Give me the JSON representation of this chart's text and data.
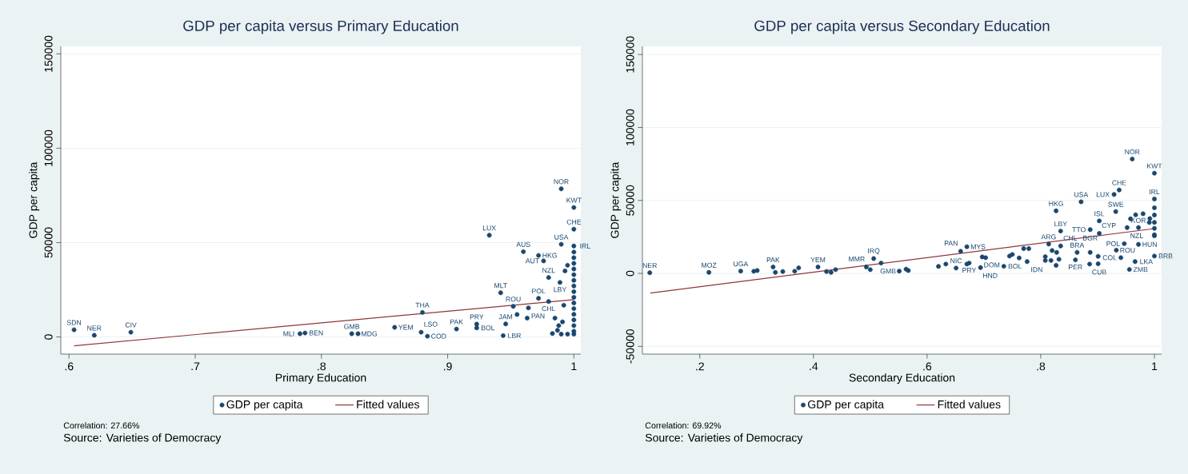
{
  "chart_data": [
    {
      "type": "scatter",
      "title": "GDP per capita versus Primary Education",
      "xlabel": "Primary Education",
      "ylabel": "GDP per capita",
      "xlim": [
        0.5935,
        1.0055
      ],
      "ylim": [
        -9100,
        154000
      ],
      "xticks": [
        {
          "value": 0.6,
          "label": ".6"
        },
        {
          "value": 0.7,
          "label": ".7"
        },
        {
          "value": 0.8,
          "label": ".8"
        },
        {
          "value": 0.9,
          "label": ".9"
        },
        {
          "value": 1,
          "label": "1"
        }
      ],
      "yticks": [
        0,
        50000,
        100000,
        150000
      ],
      "grid": "y",
      "legend": "bottom",
      "series": [
        {
          "name": "GDP per capita",
          "color": "#1a476f",
          "x": [
            0.604,
            0.62,
            0.649,
            0.783,
            0.787,
            0.824,
            0.829,
            0.858,
            0.88,
            0.879,
            0.884,
            0.907,
            0.923,
            0.923,
            0.99,
            1.0,
            1.0,
            0.933,
            0.99,
            1.0,
            0.96,
            0.972,
            0.976,
            0.98,
            0.989,
            0.942,
            0.972,
            0.98,
            0.952,
            0.964,
            0.955,
            0.963,
            0.946,
            0.944,
            0.992,
            1.0,
            1.0,
            1.0,
            1.0,
            1.0,
            1.0,
            1.0,
            1.0,
            1.0,
            1.0,
            1.0,
            1.0,
            1.0,
            1.0,
            1.0,
            1.0,
            0.985,
            0.988,
            0.99,
            0.995,
            0.983,
            0.987,
            0.995,
            0.993,
            0.991
          ],
          "values": [
            3800,
            900,
            2500,
            1700,
            2100,
            1700,
            1700,
            5100,
            13000,
            2500,
            400,
            4200,
            6800,
            4800,
            78500,
            68600,
            57100,
            53900,
            49100,
            48200,
            45200,
            43200,
            40300,
            31500,
            28900,
            23400,
            20500,
            18800,
            16200,
            15400,
            11900,
            10000,
            6900,
            700,
            16800,
            45000,
            42000,
            39000,
            36000,
            33000,
            30000,
            27000,
            24000,
            21000,
            18000,
            15000,
            12000,
            9000,
            6000,
            3000,
            1500,
            10000,
            6000,
            1500,
            1500,
            1800,
            3500,
            38000,
            35000,
            8000
          ]
        },
        {
          "name": "Fitted values",
          "color": "#90353b",
          "type": "line",
          "x": [
            0.604,
            1.0
          ],
          "values": [
            -4700,
            19800
          ]
        }
      ],
      "annotations": [
        {
          "text": "SDN",
          "x": 0.604,
          "y": 3800
        },
        {
          "text": "NER",
          "x": 0.62,
          "y": 900
        },
        {
          "text": "CIV",
          "x": 0.649,
          "y": 2500
        },
        {
          "text": "MLI",
          "x": 0.783,
          "y": 1700
        },
        {
          "text": "BEN",
          "x": 0.787,
          "y": 2100
        },
        {
          "text": "GMB",
          "x": 0.824,
          "y": 1700
        },
        {
          "text": "MDG",
          "x": 0.829,
          "y": 1700
        },
        {
          "text": "YEM",
          "x": 0.858,
          "y": 5100
        },
        {
          "text": "THA",
          "x": 0.88,
          "y": 13000
        },
        {
          "text": "LSO",
          "x": 0.879,
          "y": 2500
        },
        {
          "text": "COD",
          "x": 0.884,
          "y": 400
        },
        {
          "text": "PAK",
          "x": 0.907,
          "y": 4200
        },
        {
          "text": "PRY",
          "x": 0.923,
          "y": 6800
        },
        {
          "text": "BOL",
          "x": 0.923,
          "y": 4800
        },
        {
          "text": "NOR",
          "x": 0.99,
          "y": 78500
        },
        {
          "text": "KWT",
          "x": 1.0,
          "y": 68600
        },
        {
          "text": "CHE",
          "x": 1.0,
          "y": 57100
        },
        {
          "text": "LUX",
          "x": 0.933,
          "y": 53900
        },
        {
          "text": "USA",
          "x": 0.99,
          "y": 49100
        },
        {
          "text": "IRL",
          "x": 1.0,
          "y": 48200
        },
        {
          "text": "AUS",
          "x": 0.96,
          "y": 45200
        },
        {
          "text": "HKG",
          "x": 0.972,
          "y": 43200
        },
        {
          "text": "AUT",
          "x": 0.976,
          "y": 40300
        },
        {
          "text": "NZL",
          "x": 0.98,
          "y": 31500
        },
        {
          "text": "LBY",
          "x": 0.989,
          "y": 28900
        },
        {
          "text": "MLT",
          "x": 0.942,
          "y": 23400
        },
        {
          "text": "POL",
          "x": 0.972,
          "y": 20500
        },
        {
          "text": "CHL",
          "x": 0.98,
          "y": 18800
        },
        {
          "text": "ROU",
          "x": 0.952,
          "y": 16200
        },
        {
          "text": "PAN",
          "x": 0.964,
          "y": 15400
        },
        {
          "text": "JAM",
          "x": 0.946,
          "y": 6900
        },
        {
          "text": "LBR",
          "x": 0.944,
          "y": 700
        },
        "Correlation: 27.66%",
        "Source: Varieties of Democracy"
      ]
    },
    {
      "type": "scatter",
      "title": "GDP per capita versus Secondary Education",
      "xlabel": "Secondary Education",
      "ylabel": "GDP per capita",
      "xlim": [
        0.099,
        1.0127
      ],
      "ylim": [
        -55300,
        155600
      ],
      "xticks": [
        {
          "value": 0.2,
          "label": ".2"
        },
        {
          "value": 0.4,
          "label": ".4"
        },
        {
          "value": 0.6,
          "label": ".6"
        },
        {
          "value": 0.8,
          "label": ".8"
        },
        {
          "value": 1,
          "label": "1"
        }
      ],
      "yticks": [
        -50000,
        0,
        50000,
        100000,
        150000
      ],
      "grid": "y",
      "legend": "bottom",
      "series": [
        {
          "name": "GDP per capita",
          "color": "#1a476f",
          "x": [
            0.112,
            0.216,
            0.272,
            0.295,
            0.301,
            0.329,
            0.333,
            0.346,
            0.367,
            0.374,
            0.408,
            0.423,
            0.431,
            0.439,
            0.493,
            0.5,
            0.506,
            0.519,
            0.551,
            0.563,
            0.567,
            0.62,
            0.633,
            0.651,
            0.659,
            0.67,
            0.67,
            0.674,
            0.697,
            0.703,
            0.694,
            0.735,
            0.745,
            0.75,
            0.762,
            0.776,
            0.77,
            0.779,
            0.827,
            0.871,
            0.835,
            0.961,
            1.0,
            0.938,
            0.929,
            0.932,
            0.903,
            0.887,
            0.903,
            0.952,
            0.972,
            0.947,
            0.972,
            0.933,
            0.941,
            0.966,
            0.956,
            1.0,
            0.861,
            0.864,
            0.887,
            0.886,
            0.901,
            0.901,
            0.814,
            0.835,
            0.82,
            0.808,
            0.808,
            0.818,
            0.827,
            0.832,
            0.828,
            1.0,
            0.967,
            0.98,
            0.992,
            0.991,
            1.0,
            1.0,
            1.0,
            1.0,
            1.0,
            1.0,
            0.958
          ],
          "values": [
            500,
            700,
            1600,
            1500,
            2000,
            4400,
            700,
            1300,
            1500,
            3800,
            4400,
            1300,
            700,
            2600,
            4400,
            2600,
            10200,
            7100,
            1600,
            2900,
            2000,
            4800,
            6400,
            3700,
            15200,
            18300,
            6400,
            7100,
            11300,
            10800,
            4000,
            4900,
            11900,
            13000,
            10600,
            8100,
            17000,
            17000,
            42900,
            49100,
            29000,
            78400,
            68700,
            57200,
            54100,
            42400,
            36000,
            30000,
            27400,
            31400,
            31400,
            20400,
            19900,
            15900,
            10800,
            8100,
            2700,
            11900,
            9300,
            14400,
            14400,
            6400,
            11700,
            6600,
            20100,
            18800,
            15700,
            11500,
            8900,
            8900,
            5500,
            9700,
            14400,
            51000,
            40200,
            40900,
            37600,
            34900,
            45000,
            40000,
            35000,
            30900,
            26500,
            25800,
            37400
          ]
        },
        {
          "name": "Fitted values",
          "color": "#90353b",
          "type": "line",
          "x": [
            0.113,
            1.0
          ],
          "values": [
            -13500,
            30700
          ]
        }
      ],
      "annotations": [
        {
          "text": "NER",
          "x": 0.112,
          "y": 500
        },
        {
          "text": "MOZ",
          "x": 0.216,
          "y": 700
        },
        {
          "text": "UGA",
          "x": 0.272,
          "y": 1600
        },
        {
          "text": "PAK",
          "x": 0.329,
          "y": 4400
        },
        {
          "text": "YEM",
          "x": 0.408,
          "y": 4400
        },
        {
          "text": "MMR",
          "x": 0.493,
          "y": 4400
        },
        {
          "text": "IRQ",
          "x": 0.506,
          "y": 10200
        },
        {
          "text": "GMB",
          "x": 0.551,
          "y": 1600
        },
        {
          "text": "NIC",
          "x": 0.651,
          "y": 3700
        },
        {
          "text": "PAN",
          "x": 0.659,
          "y": 15200
        },
        {
          "text": "MYS",
          "x": 0.67,
          "y": 18300
        },
        {
          "text": "PRY",
          "x": 0.674,
          "y": 7100
        },
        {
          "text": "DOM",
          "x": 0.697,
          "y": 11300
        },
        {
          "text": "HND",
          "x": 0.694,
          "y": 4000
        },
        {
          "text": "BOL",
          "x": 0.735,
          "y": 4900
        },
        {
          "text": "IDN",
          "x": 0.776,
          "y": 8100
        },
        {
          "text": "HKG",
          "x": 0.827,
          "y": 42900
        },
        {
          "text": "USA",
          "x": 0.871,
          "y": 49100
        },
        {
          "text": "LBY",
          "x": 0.835,
          "y": 29000
        },
        {
          "text": "NOR",
          "x": 0.961,
          "y": 78400
        },
        {
          "text": "KWT",
          "x": 1.0,
          "y": 68700
        },
        {
          "text": "CHE",
          "x": 0.938,
          "y": 57200
        },
        {
          "text": "LUX",
          "x": 0.929,
          "y": 54100
        },
        {
          "text": "SWE",
          "x": 0.932,
          "y": 42400
        },
        {
          "text": "ISL",
          "x": 0.903,
          "y": 36000
        },
        {
          "text": "TTO",
          "x": 0.887,
          "y": 30000
        },
        {
          "text": "CYP",
          "x": 0.903,
          "y": 27400
        },
        {
          "text": "NZL",
          "x": 0.952,
          "y": 31400
        },
        {
          "text": "KOR",
          "x": 0.972,
          "y": 31400
        },
        {
          "text": "POL",
          "x": 0.947,
          "y": 20400
        },
        {
          "text": "HUN",
          "x": 0.972,
          "y": 19900
        },
        {
          "text": "ROU",
          "x": 0.933,
          "y": 15900
        },
        {
          "text": "COL",
          "x": 0.941,
          "y": 10800
        },
        {
          "text": "LKA",
          "x": 0.966,
          "y": 8100
        },
        {
          "text": "ZMB",
          "x": 0.956,
          "y": 2700
        },
        {
          "text": "BRB",
          "x": 1.0,
          "y": 11900
        },
        {
          "text": "PER",
          "x": 0.861,
          "y": 9300
        },
        {
          "text": "BRA",
          "x": 0.864,
          "y": 14400
        },
        {
          "text": "BGR",
          "x": 0.887,
          "y": 14400
        },
        {
          "text": "CUB",
          "x": 0.886,
          "y": 6400
        },
        {
          "text": "ARG",
          "x": 0.814,
          "y": 20100
        },
        {
          "text": "CHL",
          "x": 0.835,
          "y": 18800
        },
        {
          "text": "IRL",
          "x": 1.0,
          "y": 51000
        },
        "Correlation: 69.92%",
        "Source: Varieties of Democracy"
      ]
    }
  ]
}
